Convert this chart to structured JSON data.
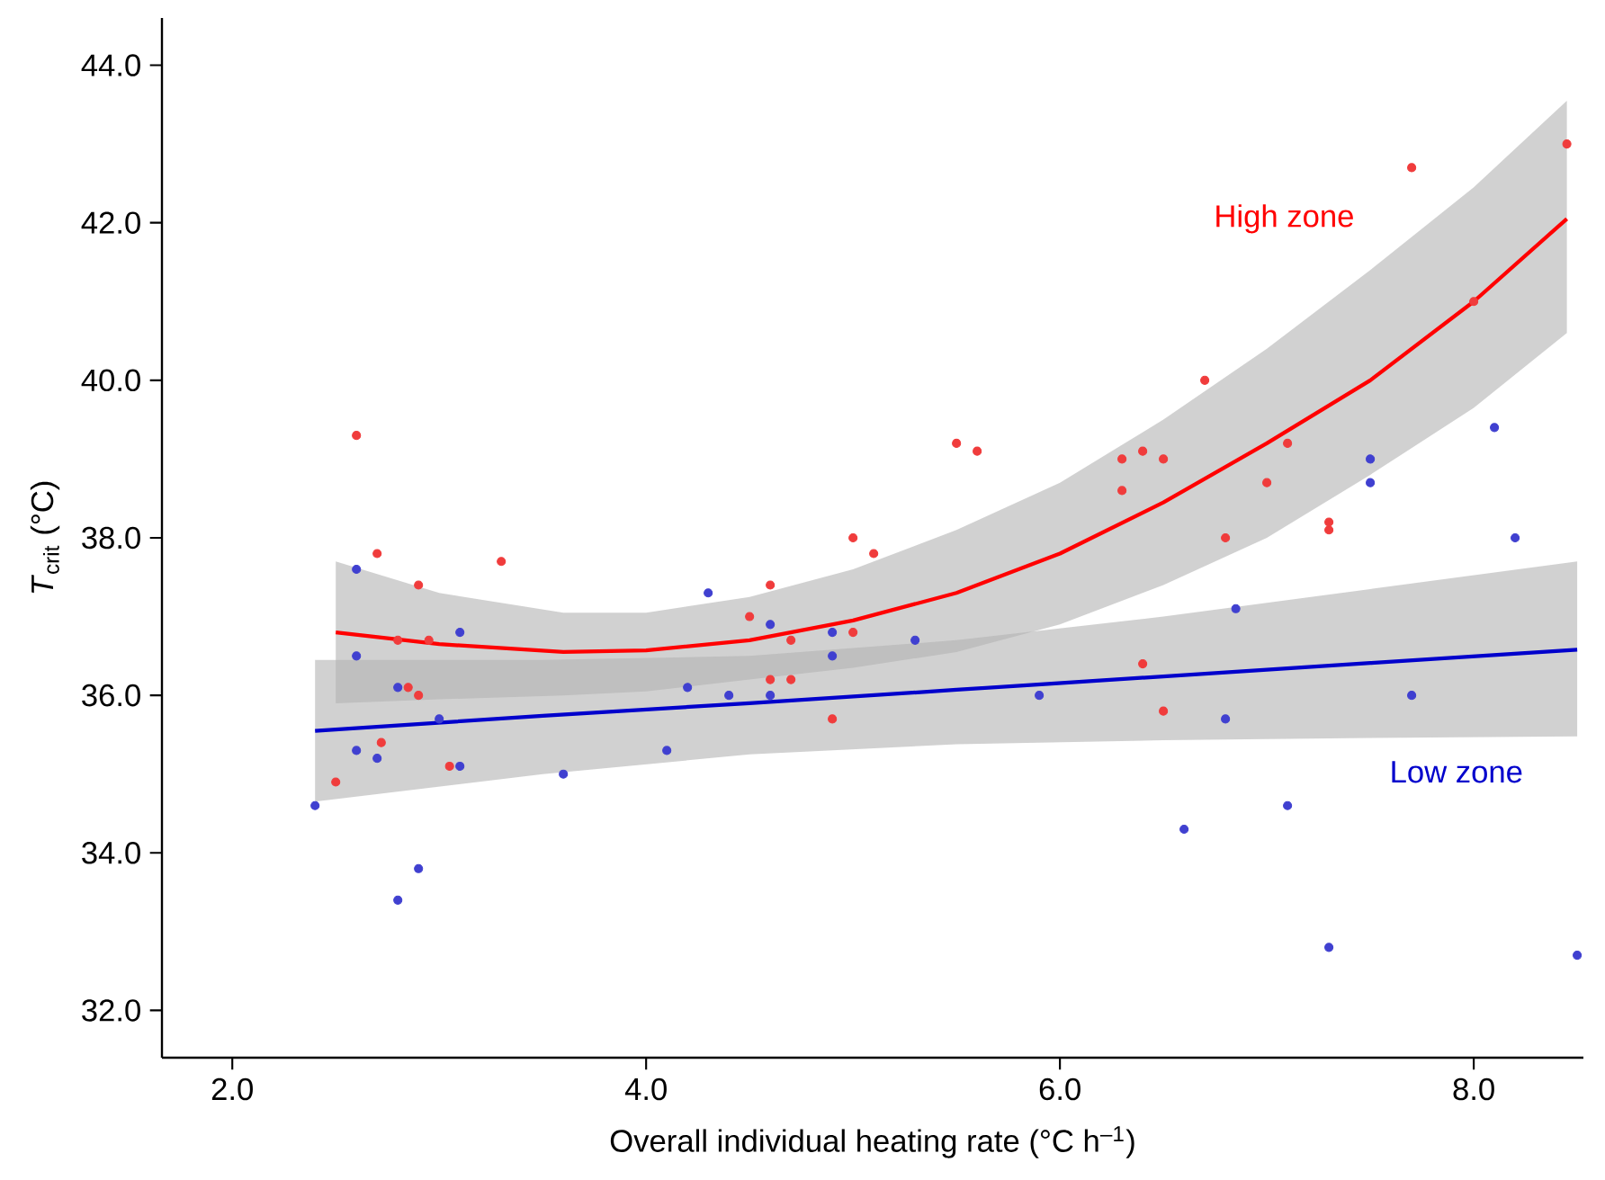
{
  "chart_data": {
    "type": "scatter",
    "xlabel": "Overall individual heating rate (°C h$^{–1}$)",
    "ylabel": "*T*$_{crit}$ (°C)",
    "xlim": [
      1.66,
      8.53
    ],
    "ylim": [
      31.4,
      44.6
    ],
    "xticks": [
      {
        "value": 2,
        "label": "2.0"
      },
      {
        "value": 4,
        "label": "4.0"
      },
      {
        "value": 6,
        "label": "6.0"
      },
      {
        "value": 8,
        "label": "8.0"
      }
    ],
    "yticks": [
      {
        "value": 32,
        "label": "32.0"
      },
      {
        "value": 34,
        "label": "34.0"
      },
      {
        "value": 36,
        "label": "36.0"
      },
      {
        "value": 38,
        "label": "38.0"
      },
      {
        "value": 40,
        "label": "40.0"
      },
      {
        "value": 42,
        "label": "42.0"
      },
      {
        "value": 44,
        "label": "44.0"
      }
    ],
    "grid": false,
    "series": [
      {
        "type": "line",
        "color": "#ff0000",
        "x": [
          2.5,
          3.0,
          3.6,
          4.0,
          4.5,
          5.0,
          5.5,
          6.0,
          6.5,
          7.0,
          7.5,
          8.0,
          8.45
        ],
        "values": [
          36.8,
          36.65,
          36.55,
          36.57,
          36.7,
          36.95,
          37.3,
          37.8,
          38.45,
          39.2,
          40.0,
          41.0,
          42.05
        ],
        "lower": [
          35.9,
          35.95,
          36.0,
          36.05,
          36.2,
          36.35,
          36.55,
          36.9,
          37.4,
          38.0,
          38.8,
          39.65,
          40.6
        ],
        "upper": [
          37.7,
          37.3,
          37.05,
          37.05,
          37.25,
          37.6,
          38.1,
          38.7,
          39.5,
          40.4,
          41.4,
          42.45,
          43.55
        ]
      },
      {
        "type": "line",
        "color": "#0000cc",
        "x": [
          2.4,
          3.5,
          4.5,
          5.5,
          6.5,
          7.5,
          8.5
        ],
        "values": [
          35.55,
          35.74,
          35.9,
          36.07,
          36.24,
          36.41,
          36.58
        ],
        "lower": [
          34.65,
          35.0,
          35.25,
          35.38,
          35.43,
          35.46,
          35.48
        ],
        "upper": [
          36.45,
          36.45,
          36.5,
          36.7,
          37.0,
          37.35,
          37.7
        ]
      },
      {
        "marker": "circle",
        "color": "#f03c3c",
        "x": [
          2.5,
          2.6,
          2.7,
          2.72,
          2.8,
          2.85,
          2.9,
          2.9,
          2.95,
          3.05,
          3.3,
          4.5,
          4.6,
          4.6,
          4.7,
          4.7,
          4.9,
          5.0,
          5.0,
          5.1,
          5.5,
          5.6,
          6.3,
          6.3,
          6.4,
          6.4,
          6.5,
          6.5,
          6.7,
          6.8,
          7.0,
          7.1,
          7.3,
          7.3,
          7.7,
          8.0,
          8.45
        ],
        "values": [
          34.9,
          39.3,
          37.8,
          35.4,
          36.7,
          36.1,
          37.4,
          36.0,
          36.7,
          35.1,
          37.7,
          37.0,
          37.4,
          36.2,
          36.7,
          36.2,
          35.7,
          38.0,
          36.8,
          37.8,
          39.2,
          39.1,
          39.0,
          38.6,
          39.1,
          36.4,
          39.0,
          35.8,
          40.0,
          38.0,
          38.7,
          39.2,
          38.2,
          38.1,
          42.7,
          41.0,
          43.0
        ]
      },
      {
        "marker": "circle",
        "color": "#4040d0",
        "x": [
          2.4,
          2.6,
          2.6,
          2.6,
          2.7,
          2.8,
          2.8,
          2.9,
          3.0,
          3.1,
          3.1,
          3.6,
          4.1,
          4.2,
          4.3,
          4.4,
          4.6,
          4.6,
          4.9,
          4.9,
          5.3,
          5.9,
          6.6,
          6.8,
          6.85,
          7.1,
          7.3,
          7.5,
          7.5,
          7.7,
          8.1,
          8.2,
          8.5
        ],
        "values": [
          34.6,
          37.6,
          36.5,
          35.3,
          35.2,
          36.1,
          33.4,
          33.8,
          35.7,
          36.8,
          35.1,
          35.0,
          35.3,
          36.1,
          37.3,
          36.0,
          36.9,
          36.0,
          36.8,
          36.5,
          36.7,
          36.0,
          34.3,
          35.7,
          37.1,
          34.6,
          32.8,
          39.0,
          38.7,
          36.0,
          39.4,
          38.0,
          32.7
        ]
      }
    ],
    "annotations": [
      "High zone",
      "Low zone"
    ]
  }
}
